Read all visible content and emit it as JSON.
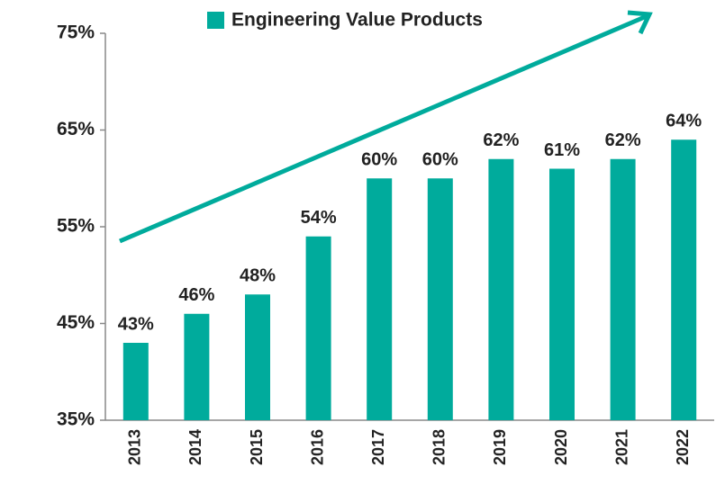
{
  "chart_data": {
    "type": "bar",
    "legend": "Engineering Value Products",
    "categories": [
      "2013",
      "2014",
      "2015",
      "2016",
      "2017",
      "2018",
      "2019",
      "2020",
      "2021",
      "2022"
    ],
    "values": [
      43,
      46,
      48,
      54,
      60,
      60,
      62,
      61,
      62,
      64
    ],
    "value_labels": [
      "43%",
      "46%",
      "48%",
      "54%",
      "60%",
      "60%",
      "62%",
      "61%",
      "62%",
      "64%"
    ],
    "color": "#00ab9c",
    "ylim": [
      35,
      75
    ],
    "yticks": [
      {
        "value": 35,
        "label": "35%"
      },
      {
        "value": 45,
        "label": "45%"
      },
      {
        "value": 55,
        "label": "55%"
      },
      {
        "value": 65,
        "label": "65%"
      },
      {
        "value": 75,
        "label": "75%"
      }
    ],
    "grid": false
  }
}
